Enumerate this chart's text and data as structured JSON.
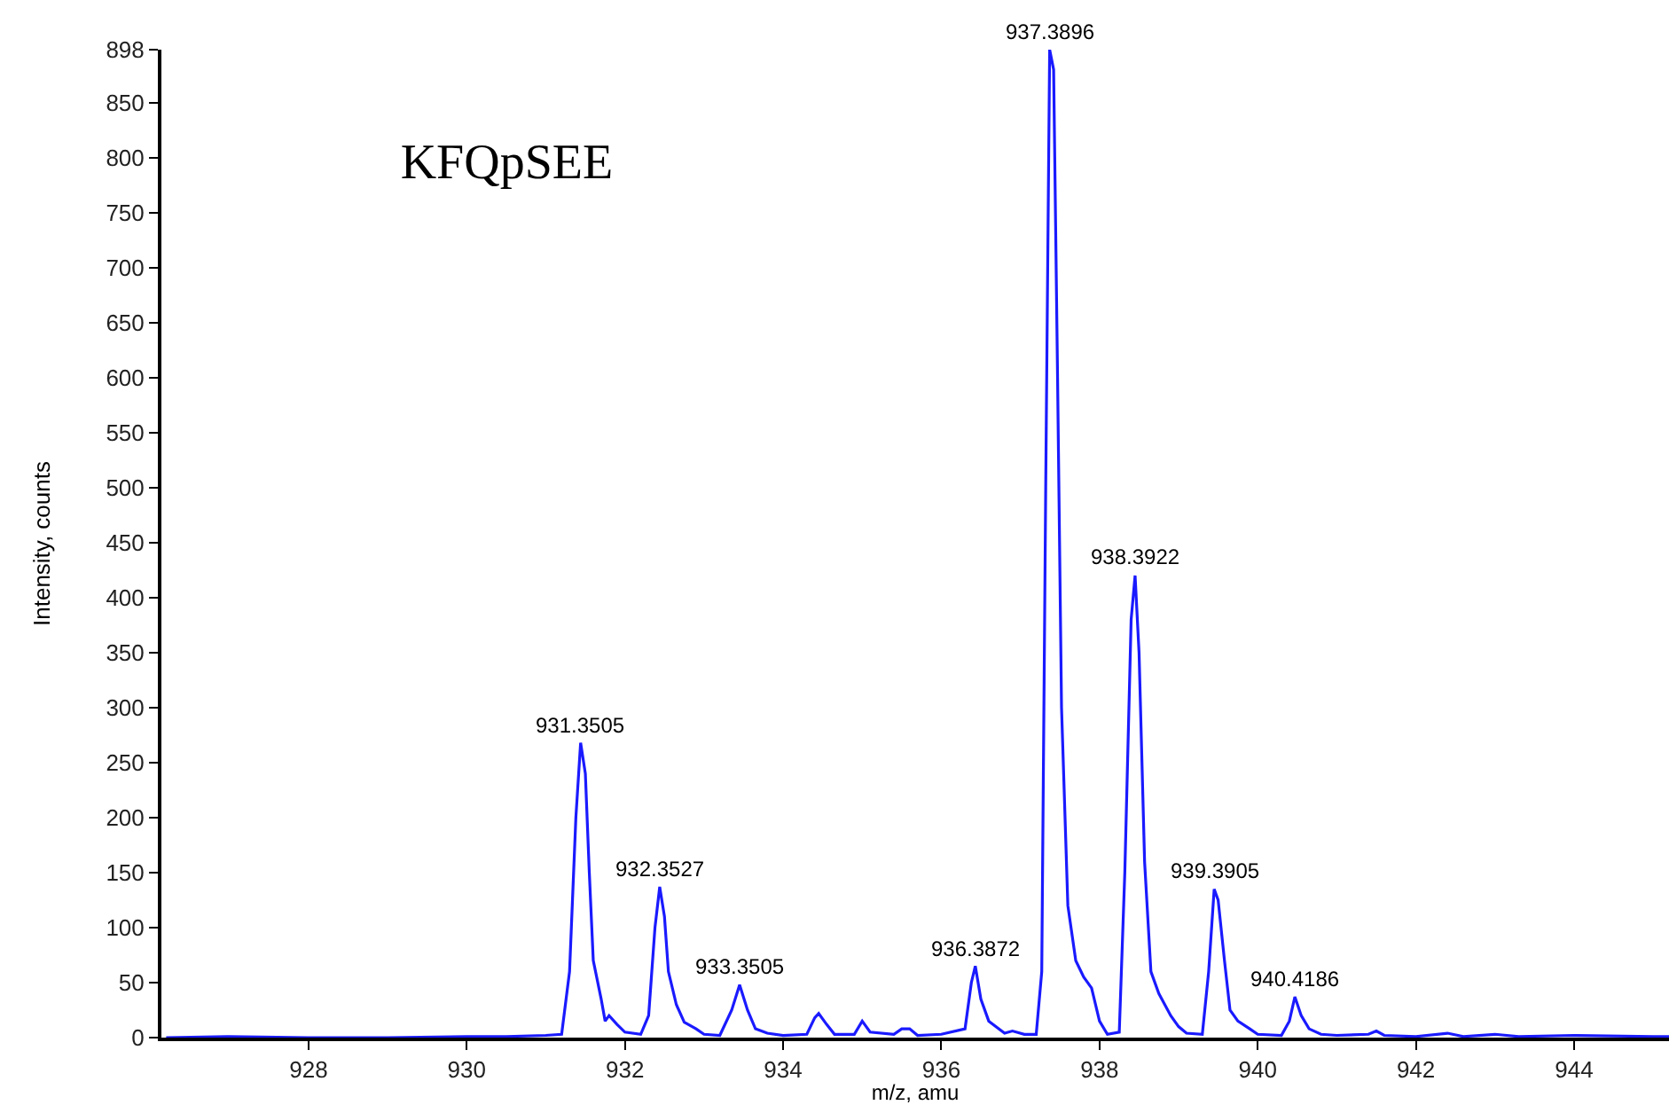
{
  "chart_data": {
    "type": "line",
    "title": "KFQpSEE",
    "xlabel": "m/z, amu",
    "ylabel": "Intensity, counts",
    "x": [
      926.2,
      927.0,
      928.0,
      929.0,
      930.0,
      930.5,
      931.0,
      931.2,
      931.3,
      931.38,
      931.44,
      931.5,
      931.55,
      931.6,
      931.7,
      931.75,
      931.8,
      931.9,
      932.0,
      932.2,
      932.3,
      932.38,
      932.44,
      932.5,
      932.55,
      932.65,
      932.75,
      932.9,
      933.0,
      933.2,
      933.35,
      933.45,
      933.55,
      933.65,
      933.8,
      934.0,
      934.3,
      934.4,
      934.45,
      934.55,
      934.65,
      934.9,
      935.0,
      935.1,
      935.4,
      935.5,
      935.6,
      935.7,
      936.0,
      936.3,
      936.38,
      936.43,
      936.5,
      936.6,
      936.8,
      936.9,
      937.05,
      937.2,
      937.27,
      937.32,
      937.37,
      937.42,
      937.47,
      937.52,
      937.6,
      937.7,
      937.8,
      937.9,
      938.0,
      938.1,
      938.25,
      938.32,
      938.4,
      938.45,
      938.5,
      938.57,
      938.65,
      938.75,
      938.9,
      939.0,
      939.1,
      939.3,
      939.38,
      939.45,
      939.5,
      939.58,
      939.65,
      939.75,
      939.9,
      940.0,
      940.3,
      940.4,
      940.47,
      940.55,
      940.65,
      940.8,
      941.0,
      941.4,
      941.5,
      941.6,
      942.0,
      942.4,
      942.6,
      943.0,
      943.3,
      944.0,
      945.0,
      945.2
    ],
    "series": [
      {
        "color": "#1a1aff",
        "values": [
          0,
          1,
          0,
          0,
          1,
          1,
          2,
          3,
          60,
          200,
          268,
          240,
          150,
          70,
          35,
          15,
          20,
          12,
          5,
          3,
          20,
          100,
          137,
          110,
          60,
          30,
          14,
          8,
          3,
          2,
          25,
          48,
          25,
          8,
          4,
          2,
          3,
          18,
          22,
          12,
          3,
          3,
          15,
          5,
          3,
          8,
          8,
          2,
          3,
          8,
          50,
          65,
          35,
          15,
          4,
          6,
          3,
          3,
          60,
          500,
          898,
          880,
          600,
          300,
          120,
          70,
          55,
          45,
          15,
          3,
          5,
          150,
          380,
          420,
          350,
          160,
          60,
          40,
          20,
          10,
          4,
          3,
          60,
          135,
          125,
          70,
          25,
          15,
          8,
          3,
          2,
          15,
          37,
          20,
          8,
          3,
          2,
          3,
          6,
          2,
          1,
          4,
          1,
          3,
          1,
          2,
          1,
          1
        ]
      }
    ],
    "annotations": [
      {
        "text": "931.3505",
        "x": 931.44,
        "y": 268
      },
      {
        "text": "932.3527",
        "x": 932.44,
        "y": 137
      },
      {
        "text": "933.3505",
        "x": 933.45,
        "y": 48
      },
      {
        "text": "936.3872",
        "x": 936.43,
        "y": 65
      },
      {
        "text": "937.3896",
        "x": 937.37,
        "y": 898
      },
      {
        "text": "938.3922",
        "x": 938.45,
        "y": 420
      },
      {
        "text": "939.3905",
        "x": 939.45,
        "y": 135
      },
      {
        "text": "940.4186",
        "x": 940.47,
        "y": 37
      }
    ],
    "xlim": [
      926.14,
      945.2
    ],
    "xticks": [
      928,
      930,
      932,
      934,
      936,
      938,
      940,
      942,
      944
    ],
    "ylim": [
      0,
      898
    ],
    "yticks": [
      0,
      50,
      100,
      150,
      200,
      250,
      300,
      350,
      400,
      450,
      500,
      550,
      600,
      650,
      700,
      750,
      800,
      850,
      898
    ],
    "marker": "none",
    "line_style": "solid"
  }
}
